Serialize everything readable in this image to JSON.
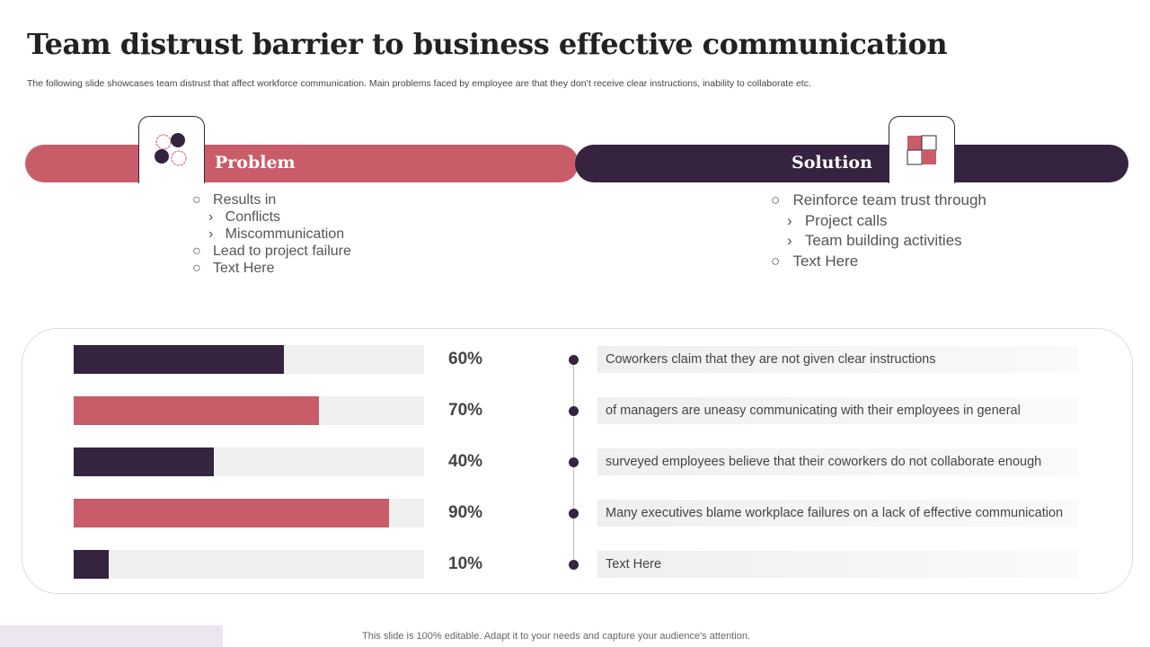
{
  "title": "Team distrust barrier to business effective communication",
  "subtitle": "The following slide showcases team distrust that affect workforce communication. Main problems faced by employee are that they don’t receive clear instructions, inability to collaborate etc.",
  "problem": {
    "label": "Problem",
    "items": [
      {
        "bullet": "○",
        "text": "Results  in"
      },
      {
        "bullet": "›",
        "text": "Conflicts",
        "sub": true
      },
      {
        "bullet": "›",
        "text": "Miscommunication",
        "sub": true
      },
      {
        "bullet": "○",
        "text": "Lead to project failure"
      },
      {
        "bullet": "○",
        "text": "Text  Here"
      }
    ]
  },
  "solution": {
    "label": "Solution",
    "items": [
      {
        "bullet": "○",
        "text": "Reinforce team trust through"
      },
      {
        "bullet": "›",
        "text": "Project calls",
        "sub": true
      },
      {
        "bullet": "›",
        "text": "Team building activities",
        "sub": true
      },
      {
        "bullet": "○",
        "text": "Text Here"
      }
    ]
  },
  "stats": [
    {
      "value": 60,
      "label": "60%",
      "text": "Coworkers claim that they are not given clear instructions",
      "color": "#35233f"
    },
    {
      "value": 70,
      "label": "70%",
      "text": "of managers are uneasy communicating with their employees in general",
      "color": "#c95c69"
    },
    {
      "value": 40,
      "label": "40%",
      "text": "surveyed employees believe that their coworkers do not collaborate enough",
      "color": "#35233f"
    },
    {
      "value": 90,
      "label": "90%",
      "text": "Many executives blame workplace failures on a lack of effective communication",
      "color": "#c95c69"
    },
    {
      "value": 10,
      "label": "10%",
      "text": "Text Here",
      "color": "#35233f"
    }
  ],
  "footer": "This slide is 100% editable. Adapt it to your needs and capture your audience's attention."
}
